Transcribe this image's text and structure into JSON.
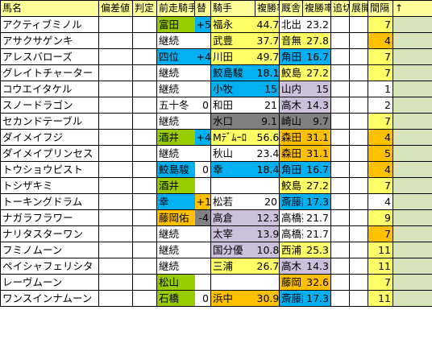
{
  "colors": {
    "header_bg": "#ffff99",
    "yellow": "#ffff66",
    "orange": "#ffc000",
    "green": "#99cc00",
    "cyan": "#00b0f0",
    "lavender": "#ccc0da",
    "gray": "#808080",
    "peach": "#fcd5b4",
    "sage": "#d8e4bc",
    "white": "#ffffff"
  },
  "headers": {
    "name": "馬名",
    "hensachi": "偏差値",
    "hantei": "判定",
    "prev_jockey": "前走騎手",
    "change": "替",
    "jockey": "騎手",
    "j_rate": "複勝率",
    "stable": "厩舎",
    "s_rate": "複勝率",
    "oikiri": "追切",
    "tenkai": "展開",
    "interval": "間隔",
    "arrow": "↑"
  },
  "rows": [
    {
      "name": "アクティブミノル",
      "prev": "富田",
      "prev_bg": "green",
      "chg": "+5",
      "chg_bg": "cyan",
      "jockey": "福永",
      "j_rate": "44.7",
      "j_bg": "yellow",
      "stable": "北出",
      "s_rate": "23.2",
      "s_bg": "white",
      "interval": "7",
      "i_bg": "yellow"
    },
    {
      "name": "アサクサゲンキ",
      "prev": "継続",
      "prev_bg": "white",
      "chg": "",
      "chg_bg": "white",
      "jockey": "武豊",
      "j_rate": "37.7",
      "j_bg": "yellow",
      "stable": "音無",
      "s_rate": "27.8",
      "s_bg": "yellow",
      "interval": "4",
      "i_bg": "orange"
    },
    {
      "name": "アレスバローズ",
      "prev": "四位",
      "prev_bg": "cyan",
      "chg": "+4",
      "chg_bg": "cyan",
      "jockey": "川田",
      "j_rate": "49.7",
      "j_bg": "yellow",
      "stable": "角田",
      "s_rate": "16.7",
      "s_bg": "cyan",
      "interval": "7",
      "i_bg": "yellow"
    },
    {
      "name": "グレイトチャーター",
      "prev": "継続",
      "prev_bg": "white",
      "chg": "",
      "chg_bg": "white",
      "jockey": "鮫島駿",
      "j_rate": "18.1",
      "j_bg": "cyan",
      "stable": "鮫島",
      "s_rate": "27.2",
      "s_bg": "yellow",
      "interval": "7",
      "i_bg": "yellow"
    },
    {
      "name": "コウエイタケル",
      "prev": "継続",
      "prev_bg": "white",
      "chg": "",
      "chg_bg": "white",
      "jockey": "小牧",
      "j_rate": "15",
      "j_bg": "cyan",
      "stable": "山内",
      "s_rate": "15",
      "s_bg": "lavender",
      "interval": "1",
      "i_bg": "white"
    },
    {
      "name": "スノードラゴン",
      "prev": "五十冬",
      "prev_bg": "white",
      "chg": "0",
      "chg_bg": "white",
      "jockey": "和田",
      "j_rate": "21",
      "j_bg": "white",
      "stable": "高木",
      "s_rate": "14.3",
      "s_bg": "lavender",
      "interval": "2",
      "i_bg": "white"
    },
    {
      "name": "セカンドテーブル",
      "prev": "継続",
      "prev_bg": "white",
      "chg": "",
      "chg_bg": "white",
      "jockey": "水口",
      "j_rate": "9.1",
      "j_bg": "gray",
      "stable": "崎山",
      "s_rate": "9.7",
      "s_bg": "gray",
      "interval": "7",
      "i_bg": "yellow"
    },
    {
      "name": "ダイメイフジ",
      "prev": "酒井",
      "prev_bg": "green",
      "chg": "+4",
      "chg_bg": "cyan",
      "jockey": "Mﾃﾞﾑｰﾛ",
      "j_rate": "56.6",
      "j_bg": "yellow",
      "stable": "森田",
      "s_rate": "31.1",
      "s_bg": "orange",
      "interval": "4",
      "i_bg": "orange"
    },
    {
      "name": "ダイメイプリンセス",
      "prev": "継続",
      "prev_bg": "white",
      "chg": "",
      "chg_bg": "white",
      "jockey": "秋山",
      "j_rate": "23.4",
      "j_bg": "white",
      "stable": "森田",
      "s_rate": "31.1",
      "s_bg": "orange",
      "interval": "5",
      "i_bg": "orange"
    },
    {
      "name": "トウショウピスト",
      "prev": "鮫島駿",
      "prev_bg": "cyan",
      "chg": "0",
      "chg_bg": "white",
      "jockey": "幸",
      "j_rate": "18.4",
      "j_bg": "cyan",
      "stable": "角田",
      "s_rate": "16.7",
      "s_bg": "cyan",
      "interval": "4",
      "i_bg": "orange"
    },
    {
      "name": "トシザキミ",
      "prev": "酒井",
      "prev_bg": "green",
      "chg": "",
      "chg_bg": "white",
      "jockey": "",
      "j_rate": "",
      "j_bg": "white",
      "stable": "鮫島",
      "s_rate": "27.2",
      "s_bg": "yellow",
      "interval": "7",
      "i_bg": "yellow"
    },
    {
      "name": "トーキングドラム",
      "prev": "幸",
      "prev_bg": "cyan",
      "chg": "+1",
      "chg_bg": "orange",
      "jockey": "松若",
      "j_rate": "20",
      "j_bg": "white",
      "stable": "斎藤誠",
      "s_rate": "17.3",
      "s_bg": "cyan",
      "interval": "4",
      "i_bg": "white"
    },
    {
      "name": "ナガラフラワー",
      "prev": "藤岡佑",
      "prev_bg": "orange",
      "chg": "-4",
      "chg_bg": "gray",
      "jockey": "高倉",
      "j_rate": "12.3",
      "j_bg": "lavender",
      "stable": "高橋亮",
      "s_rate": "21.7",
      "s_bg": "white",
      "interval": "9",
      "i_bg": "yellow"
    },
    {
      "name": "ナリタスターワン",
      "prev": "継続",
      "prev_bg": "white",
      "chg": "",
      "chg_bg": "white",
      "jockey": "太宰",
      "j_rate": "13.9",
      "j_bg": "lavender",
      "stable": "高橋亮",
      "s_rate": "21.7",
      "s_bg": "white",
      "interval": "7",
      "i_bg": "orange"
    },
    {
      "name": "フミノムーン",
      "prev": "継続",
      "prev_bg": "white",
      "chg": "",
      "chg_bg": "white",
      "jockey": "国分優",
      "j_rate": "10.8",
      "j_bg": "lavender",
      "stable": "西浦",
      "s_rate": "25.3",
      "s_bg": "yellow",
      "interval": "11",
      "i_bg": "yellow"
    },
    {
      "name": "ペイシャフェリシタ",
      "prev": "継続",
      "prev_bg": "white",
      "chg": "",
      "chg_bg": "white",
      "jockey": "三浦",
      "j_rate": "26.7",
      "j_bg": "yellow",
      "stable": "高木",
      "s_rate": "14.3",
      "s_bg": "lavender",
      "interval": "11",
      "i_bg": "yellow"
    },
    {
      "name": "レーヴムーン",
      "prev": "松山",
      "prev_bg": "green",
      "chg": "",
      "chg_bg": "white",
      "jockey": "",
      "j_rate": "",
      "j_bg": "white",
      "stable": "藤岡",
      "s_rate": "32.6",
      "s_bg": "orange",
      "interval": "7",
      "i_bg": "yellow"
    },
    {
      "name": "ワンスインナムーン",
      "prev": "石橋",
      "prev_bg": "green",
      "chg": "0",
      "chg_bg": "white",
      "jockey": "浜中",
      "j_rate": "30.9",
      "j_bg": "orange",
      "stable": "斎藤誠",
      "s_rate": "17.3",
      "s_bg": "cyan",
      "interval": "11",
      "i_bg": "yellow"
    }
  ]
}
